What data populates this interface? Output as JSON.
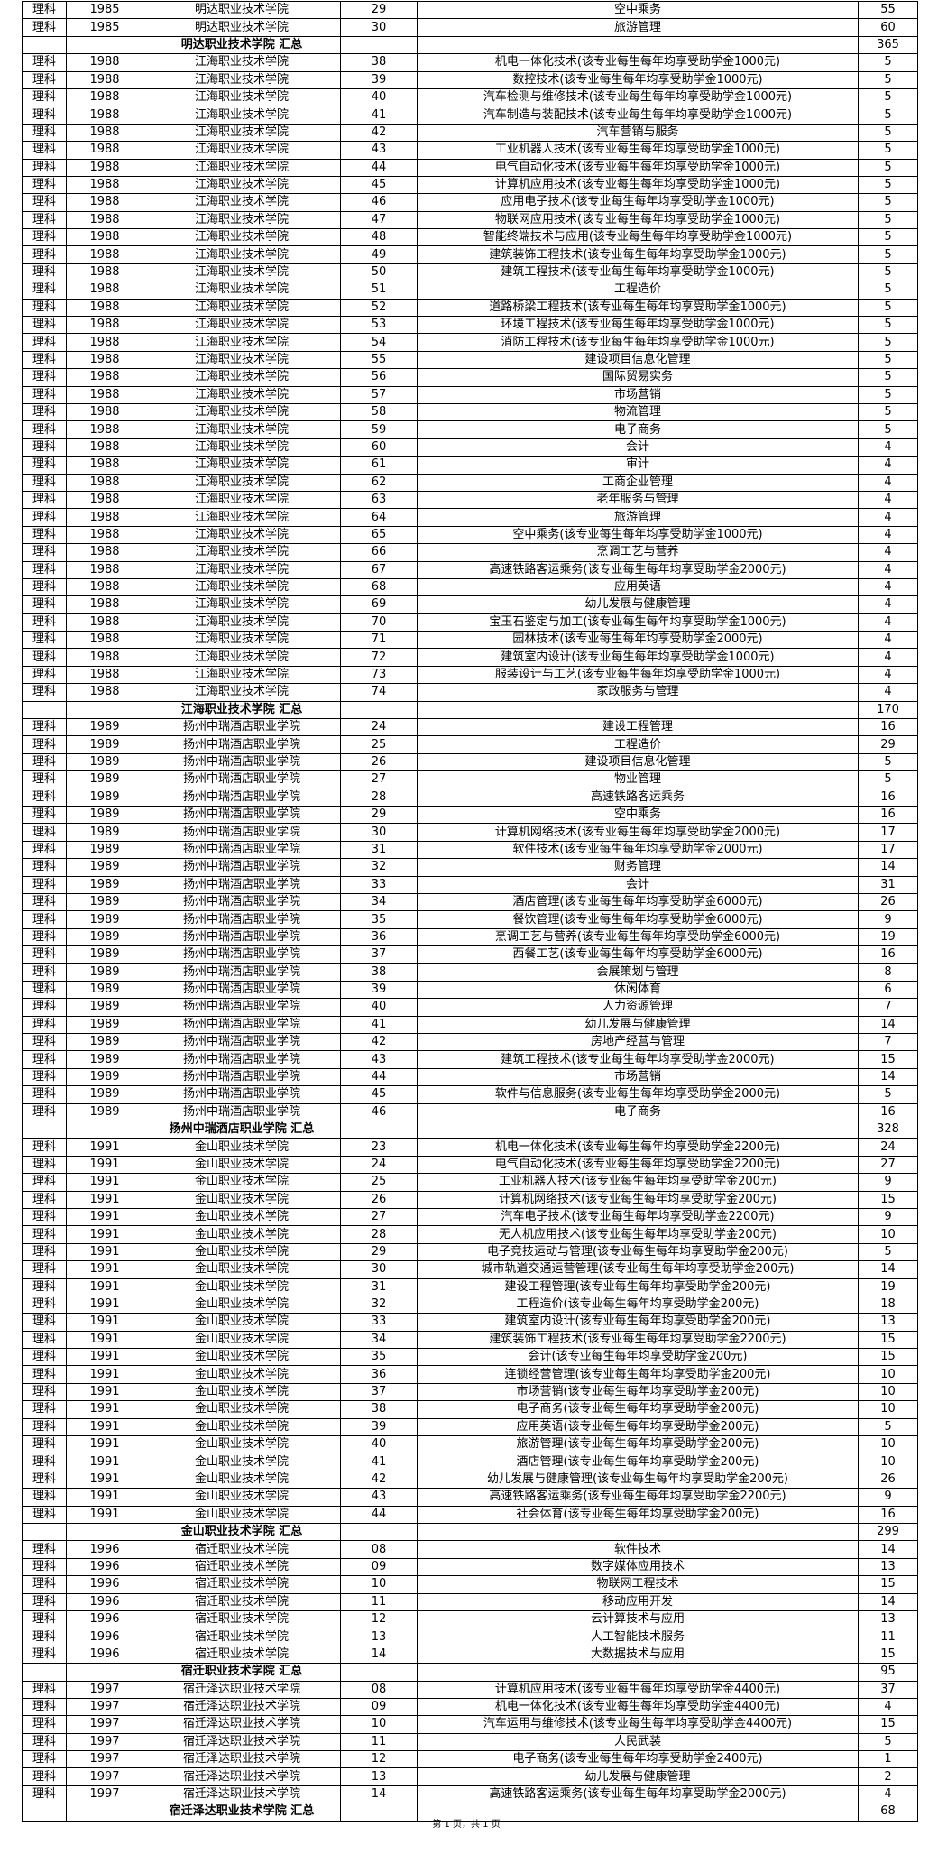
{
  "rows": [
    [
      "理科",
      "1985",
      "明达职业技术学院",
      "29",
      "空中乘务",
      "55"
    ],
    [
      "理科",
      "1985",
      "明达职业技术学院",
      "30",
      "旅游管理",
      "60"
    ],
    [
      "",
      "",
      "明达职业技术学院 汇总",
      "",
      "",
      "365"
    ],
    [
      "理科",
      "1988",
      "江海职业技术学院",
      "38",
      "机电一体化技术(该专业每生每年均享受助学金1000元)",
      "5"
    ],
    [
      "理科",
      "1988",
      "江海职业技术学院",
      "39",
      "数控技术(该专业每生每年均享受助学金1000元)",
      "5"
    ],
    [
      "理科",
      "1988",
      "江海职业技术学院",
      "40",
      "汽车检测与维修技术(该专业每生每年均享受助学金1000元)",
      "5"
    ],
    [
      "理科",
      "1988",
      "江海职业技术学院",
      "41",
      "汽车制造与装配技术(该专业每生每年均享受助学金1000元)",
      "5"
    ],
    [
      "理科",
      "1988",
      "江海职业技术学院",
      "42",
      "汽车营销与服务",
      "5"
    ],
    [
      "理科",
      "1988",
      "江海职业技术学院",
      "43",
      "工业机器人技术(该专业每生每年均享受助学金1000元)",
      "5"
    ],
    [
      "理科",
      "1988",
      "江海职业技术学院",
      "44",
      "电气自动化技术(该专业每生每年均享受助学金1000元)",
      "5"
    ],
    [
      "理科",
      "1988",
      "江海职业技术学院",
      "45",
      "计算机应用技术(该专业每生每年均享受助学金1000元)",
      "5"
    ],
    [
      "理科",
      "1988",
      "江海职业技术学院",
      "46",
      "应用电子技术(该专业每生每年均享受助学金1000元)",
      "5"
    ],
    [
      "理科",
      "1988",
      "江海职业技术学院",
      "47",
      "物联网应用技术(该专业每生每年均享受助学金1000元)",
      "5"
    ],
    [
      "理科",
      "1988",
      "江海职业技术学院",
      "48",
      "智能终端技术与应用(该专业每生每年均享受助学金1000元)",
      "5"
    ],
    [
      "理科",
      "1988",
      "江海职业技术学院",
      "49",
      "建筑装饰工程技术(该专业每生每年均享受助学金1000元)",
      "5"
    ],
    [
      "理科",
      "1988",
      "江海职业技术学院",
      "50",
      "建筑工程技术(该专业每生每年均享受助学金1000元)",
      "5"
    ],
    [
      "理科",
      "1988",
      "江海职业技术学院",
      "51",
      "工程造价",
      "5"
    ],
    [
      "理科",
      "1988",
      "江海职业技术学院",
      "52",
      "道路桥梁工程技术(该专业每生每年均享受助学金1000元)",
      "5"
    ],
    [
      "理科",
      "1988",
      "江海职业技术学院",
      "53",
      "环境工程技术(该专业每生每年均享受助学金1000元)",
      "5"
    ],
    [
      "理科",
      "1988",
      "江海职业技术学院",
      "54",
      "消防工程技术(该专业每生每年均享受助学金1000元)",
      "5"
    ],
    [
      "理科",
      "1988",
      "江海职业技术学院",
      "55",
      "建设项目信息化管理",
      "5"
    ],
    [
      "理科",
      "1988",
      "江海职业技术学院",
      "56",
      "国际贸易实务",
      "5"
    ],
    [
      "理科",
      "1988",
      "江海职业技术学院",
      "57",
      "市场营销",
      "5"
    ],
    [
      "理科",
      "1988",
      "江海职业技术学院",
      "58",
      "物流管理",
      "5"
    ],
    [
      "理科",
      "1988",
      "江海职业技术学院",
      "59",
      "电子商务",
      "5"
    ],
    [
      "理科",
      "1988",
      "江海职业技术学院",
      "60",
      "会计",
      "4"
    ],
    [
      "理科",
      "1988",
      "江海职业技术学院",
      "61",
      "审计",
      "4"
    ],
    [
      "理科",
      "1988",
      "江海职业技术学院",
      "62",
      "工商企业管理",
      "4"
    ],
    [
      "理科",
      "1988",
      "江海职业技术学院",
      "63",
      "老年服务与管理",
      "4"
    ],
    [
      "理科",
      "1988",
      "江海职业技术学院",
      "64",
      "旅游管理",
      "4"
    ],
    [
      "理科",
      "1988",
      "江海职业技术学院",
      "65",
      "空中乘务(该专业每生每年均享受助学金1000元)",
      "4"
    ],
    [
      "理科",
      "1988",
      "江海职业技术学院",
      "66",
      "烹调工艺与营养",
      "4"
    ],
    [
      "理科",
      "1988",
      "江海职业技术学院",
      "67",
      "高速铁路客运乘务(该专业每生每年均享受助学金2000元)",
      "4"
    ],
    [
      "理科",
      "1988",
      "江海职业技术学院",
      "68",
      "应用英语",
      "4"
    ],
    [
      "理科",
      "1988",
      "江海职业技术学院",
      "69",
      "幼儿发展与健康管理",
      "4"
    ],
    [
      "理科",
      "1988",
      "江海职业技术学院",
      "70",
      "宝玉石鉴定与加工(该专业每生每年均享受助学金1000元)",
      "4"
    ],
    [
      "理科",
      "1988",
      "江海职业技术学院",
      "71",
      "园林技术(该专业每生每年均享受助学金2000元)",
      "4"
    ],
    [
      "理科",
      "1988",
      "江海职业技术学院",
      "72",
      "建筑室内设计(该专业每生每年均享受助学金1000元)",
      "4"
    ],
    [
      "理科",
      "1988",
      "江海职业技术学院",
      "73",
      "服装设计与工艺(该专业每生每年均享受助学金1000元)",
      "4"
    ],
    [
      "理科",
      "1988",
      "江海职业技术学院",
      "74",
      "家政服务与管理",
      "4"
    ],
    [
      "",
      "",
      "江海职业技术学院 汇总",
      "",
      "",
      "170"
    ],
    [
      "理科",
      "1989",
      "扬州中瑞酒店职业学院",
      "24",
      "建设工程管理",
      "16"
    ],
    [
      "理科",
      "1989",
      "扬州中瑞酒店职业学院",
      "25",
      "工程造价",
      "29"
    ],
    [
      "理科",
      "1989",
      "扬州中瑞酒店职业学院",
      "26",
      "建设项目信息化管理",
      "5"
    ],
    [
      "理科",
      "1989",
      "扬州中瑞酒店职业学院",
      "27",
      "物业管理",
      "5"
    ],
    [
      "理科",
      "1989",
      "扬州中瑞酒店职业学院",
      "28",
      "高速铁路客运乘务",
      "16"
    ],
    [
      "理科",
      "1989",
      "扬州中瑞酒店职业学院",
      "29",
      "空中乘务",
      "16"
    ],
    [
      "理科",
      "1989",
      "扬州中瑞酒店职业学院",
      "30",
      "计算机网络技术(该专业每生每年均享受助学金2000元)",
      "17"
    ],
    [
      "理科",
      "1989",
      "扬州中瑞酒店职业学院",
      "31",
      "软件技术(该专业每生每年均享受助学金2000元)",
      "17"
    ],
    [
      "理科",
      "1989",
      "扬州中瑞酒店职业学院",
      "32",
      "财务管理",
      "14"
    ],
    [
      "理科",
      "1989",
      "扬州中瑞酒店职业学院",
      "33",
      "会计",
      "31"
    ],
    [
      "理科",
      "1989",
      "扬州中瑞酒店职业学院",
      "34",
      "酒店管理(该专业每生每年均享受助学金6000元)",
      "26"
    ],
    [
      "理科",
      "1989",
      "扬州中瑞酒店职业学院",
      "35",
      "餐饮管理(该专业每生每年均享受助学金6000元)",
      "9"
    ],
    [
      "理科",
      "1989",
      "扬州中瑞酒店职业学院",
      "36",
      "烹调工艺与营养(该专业每生每年均享受助学金6000元)",
      "19"
    ],
    [
      "理科",
      "1989",
      "扬州中瑞酒店职业学院",
      "37",
      "西餐工艺(该专业每生每年均享受助学金6000元)",
      "16"
    ],
    [
      "理科",
      "1989",
      "扬州中瑞酒店职业学院",
      "38",
      "会展策划与管理",
      "8"
    ],
    [
      "理科",
      "1989",
      "扬州中瑞酒店职业学院",
      "39",
      "休闲体育",
      "6"
    ],
    [
      "理科",
      "1989",
      "扬州中瑞酒店职业学院",
      "40",
      "人力资源管理",
      "7"
    ],
    [
      "理科",
      "1989",
      "扬州中瑞酒店职业学院",
      "41",
      "幼儿发展与健康管理",
      "14"
    ],
    [
      "理科",
      "1989",
      "扬州中瑞酒店职业学院",
      "42",
      "房地产经营与管理",
      "7"
    ],
    [
      "理科",
      "1989",
      "扬州中瑞酒店职业学院",
      "43",
      "建筑工程技术(该专业每生每年均享受助学金2000元)",
      "15"
    ],
    [
      "理科",
      "1989",
      "扬州中瑞酒店职业学院",
      "44",
      "市场营销",
      "14"
    ],
    [
      "理科",
      "1989",
      "扬州中瑞酒店职业学院",
      "45",
      "软件与信息服务(该专业每生每年均享受助学金2000元)",
      "5"
    ],
    [
      "理科",
      "1989",
      "扬州中瑞酒店职业学院",
      "46",
      "电子商务",
      "16"
    ],
    [
      "",
      "",
      "扬州中瑞酒店职业学院 汇总",
      "",
      "",
      "328"
    ],
    [
      "理科",
      "1991",
      "金山职业技术学院",
      "23",
      "机电一体化技术(该专业每生每年均享受助学金2200元)",
      "24"
    ],
    [
      "理科",
      "1991",
      "金山职业技术学院",
      "24",
      "电气自动化技术(该专业每生每年均享受助学金2200元)",
      "27"
    ],
    [
      "理科",
      "1991",
      "金山职业技术学院",
      "25",
      "工业机器人技术(该专业每生每年均享受助学金200元)",
      "9"
    ],
    [
      "理科",
      "1991",
      "金山职业技术学院",
      "26",
      "计算机网络技术(该专业每生每年均享受助学金200元)",
      "15"
    ],
    [
      "理科",
      "1991",
      "金山职业技术学院",
      "27",
      "汽车电子技术(该专业每生每年均享受助学金2200元)",
      "9"
    ],
    [
      "理科",
      "1991",
      "金山职业技术学院",
      "28",
      "无人机应用技术(该专业每生每年均享受助学金200元)",
      "10"
    ],
    [
      "理科",
      "1991",
      "金山职业技术学院",
      "29",
      "电子竞技运动与管理(该专业每生每年均享受助学金200元)",
      "5"
    ],
    [
      "理科",
      "1991",
      "金山职业技术学院",
      "30",
      "城市轨道交通运营管理(该专业每生每年均享受助学金200元)",
      "14"
    ],
    [
      "理科",
      "1991",
      "金山职业技术学院",
      "31",
      "建设工程管理(该专业每生每年均享受助学金200元)",
      "19"
    ],
    [
      "理科",
      "1991",
      "金山职业技术学院",
      "32",
      "工程造价(该专业每生每年均享受助学金200元)",
      "18"
    ],
    [
      "理科",
      "1991",
      "金山职业技术学院",
      "33",
      "建筑室内设计(该专业每生每年均享受助学金200元)",
      "13"
    ],
    [
      "理科",
      "1991",
      "金山职业技术学院",
      "34",
      "建筑装饰工程技术(该专业每生每年均享受助学金2200元)",
      "15"
    ],
    [
      "理科",
      "1991",
      "金山职业技术学院",
      "35",
      "会计(该专业每生每年均享受助学金200元)",
      "15"
    ],
    [
      "理科",
      "1991",
      "金山职业技术学院",
      "36",
      "连锁经营管理(该专业每生每年均享受助学金200元)",
      "10"
    ],
    [
      "理科",
      "1991",
      "金山职业技术学院",
      "37",
      "市场营销(该专业每生每年均享受助学金200元)",
      "10"
    ],
    [
      "理科",
      "1991",
      "金山职业技术学院",
      "38",
      "电子商务(该专业每生每年均享受助学金200元)",
      "10"
    ],
    [
      "理科",
      "1991",
      "金山职业技术学院",
      "39",
      "应用英语(该专业每生每年均享受助学金200元)",
      "5"
    ],
    [
      "理科",
      "1991",
      "金山职业技术学院",
      "40",
      "旅游管理(该专业每生每年均享受助学金200元)",
      "10"
    ],
    [
      "理科",
      "1991",
      "金山职业技术学院",
      "41",
      "酒店管理(该专业每生每年均享受助学金200元)",
      "10"
    ],
    [
      "理科",
      "1991",
      "金山职业技术学院",
      "42",
      "幼儿发展与健康管理(该专业每生每年均享受助学金200元)",
      "26"
    ],
    [
      "理科",
      "1991",
      "金山职业技术学院",
      "43",
      "高速铁路客运乘务(该专业每生每年均享受助学金2200元)",
      "9"
    ],
    [
      "理科",
      "1991",
      "金山职业技术学院",
      "44",
      "社会体育(该专业每生每年均享受助学金200元)",
      "16"
    ],
    [
      "",
      "",
      "金山职业技术学院 汇总",
      "",
      "",
      "299"
    ],
    [
      "理科",
      "1996",
      "宿迁职业技术学院",
      "08",
      "软件技术",
      "14"
    ],
    [
      "理科",
      "1996",
      "宿迁职业技术学院",
      "09",
      "数字媒体应用技术",
      "13"
    ],
    [
      "理科",
      "1996",
      "宿迁职业技术学院",
      "10",
      "物联网工程技术",
      "15"
    ],
    [
      "理科",
      "1996",
      "宿迁职业技术学院",
      "11",
      "移动应用开发",
      "14"
    ],
    [
      "理科",
      "1996",
      "宿迁职业技术学院",
      "12",
      "云计算技术与应用",
      "13"
    ],
    [
      "理科",
      "1996",
      "宿迁职业技术学院",
      "13",
      "人工智能技术服务",
      "11"
    ],
    [
      "理科",
      "1996",
      "宿迁职业技术学院",
      "14",
      "大数据技术与应用",
      "15"
    ],
    [
      "",
      "",
      "宿迁职业技术学院 汇总",
      "",
      "",
      "95"
    ],
    [
      "理科",
      "1997",
      "宿迁泽达职业技术学院",
      "08",
      "计算机应用技术(该专业每生每年均享受助学金4400元)",
      "37"
    ],
    [
      "理科",
      "1997",
      "宿迁泽达职业技术学院",
      "09",
      "机电一体化技术(该专业每生每年均享受助学金4400元)",
      "4"
    ],
    [
      "理科",
      "1997",
      "宿迁泽达职业技术学院",
      "10",
      "汽车运用与维修技术(该专业每生每年均享受助学金4400元)",
      "15"
    ],
    [
      "理科",
      "1997",
      "宿迁泽达职业技术学院",
      "11",
      "人民武装",
      "5"
    ],
    [
      "理科",
      "1997",
      "宿迁泽达职业技术学院",
      "12",
      "电子商务(该专业每生每年均享受助学金2400元)",
      "1"
    ],
    [
      "理科",
      "1997",
      "宿迁泽达职业技术学院",
      "13",
      "幼儿发展与健康管理",
      "2"
    ],
    [
      "理科",
      "1997",
      "宿迁泽达职业技术学院",
      "14",
      "高速铁路客运乘务(该专业每生每年均享受助学金2000元)",
      "4"
    ],
    [
      "",
      "",
      "宿迁泽达职业技术学院 汇总",
      "",
      "",
      "68"
    ]
  ],
  "footer": "第 1 页，共 1 页"
}
